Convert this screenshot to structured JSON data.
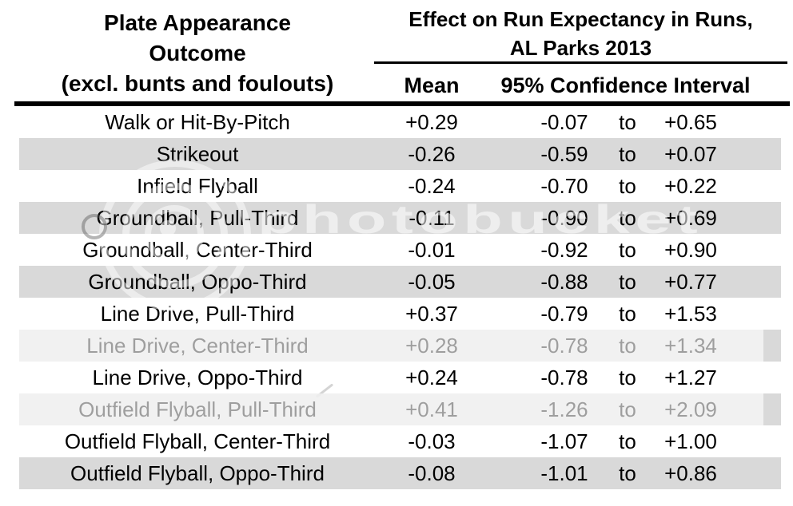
{
  "header": {
    "left_title_lines": [
      "Plate Appearance",
      "Outcome",
      "(excl. bunts and foulouts)"
    ],
    "right_title_lines": [
      "Effect on Run Expectancy in Runs,",
      "AL Parks 2013"
    ],
    "col_mean": "Mean",
    "col_ci": "95% Confidence Interval",
    "ci_separator": "to"
  },
  "rows": [
    {
      "outcome": "Walk or Hit-By-Pitch",
      "mean": "+0.29",
      "ci_low": "-0.07",
      "ci_high": "+0.65",
      "shade": "white",
      "faded": false
    },
    {
      "outcome": "Strikeout",
      "mean": "-0.26",
      "ci_low": "-0.59",
      "ci_high": "+0.07",
      "shade": "gray",
      "faded": false
    },
    {
      "outcome": "Infield Flyball",
      "mean": "-0.24",
      "ci_low": "-0.70",
      "ci_high": "+0.22",
      "shade": "white",
      "faded": false
    },
    {
      "outcome": "Groundball, Pull-Third",
      "mean": "-0.11",
      "ci_low": "-0.90",
      "ci_high": "+0.69",
      "shade": "gray",
      "faded": false
    },
    {
      "outcome": "Groundball, Center-Third",
      "mean": "-0.01",
      "ci_low": "-0.92",
      "ci_high": "+0.90",
      "shade": "white",
      "faded": false
    },
    {
      "outcome": "Groundball, Oppo-Third",
      "mean": "-0.05",
      "ci_low": "-0.88",
      "ci_high": "+0.77",
      "shade": "gray",
      "faded": false
    },
    {
      "outcome": "Line Drive, Pull-Third",
      "mean": "+0.37",
      "ci_low": "-0.79",
      "ci_high": "+1.53",
      "shade": "white",
      "faded": false
    },
    {
      "outcome": "Line Drive, Center-Third",
      "mean": "+0.28",
      "ci_low": "-0.78",
      "ci_high": "+1.34",
      "shade": "gray",
      "faded": true
    },
    {
      "outcome": "Line Drive, Oppo-Third",
      "mean": "+0.24",
      "ci_low": "-0.78",
      "ci_high": "+1.27",
      "shade": "white",
      "faded": false
    },
    {
      "outcome": "Outfield Flyball, Pull-Third",
      "mean": "+0.41",
      "ci_low": "-1.26",
      "ci_high": "+2.09",
      "shade": "gray",
      "faded": true
    },
    {
      "outcome": "Outfield Flyball, Center-Third",
      "mean": "-0.03",
      "ci_low": "-1.07",
      "ci_high": "+1.00",
      "shade": "white",
      "faded": false
    },
    {
      "outcome": "Outfield Flyball, Oppo-Third",
      "mean": "-0.08",
      "ci_low": "-1.01",
      "ci_high": "+0.86",
      "shade": "gray",
      "faded": false
    }
  ],
  "watermark": {
    "text": "photobucket"
  },
  "colors": {
    "row_gray": "#d9d9d9",
    "row_faded": "#f0f0f0",
    "text": "#000000",
    "faded_text": "#9e9e9e"
  },
  "chart_data": {
    "type": "table",
    "title": "Effect on Run Expectancy in Runs, AL Parks 2013",
    "row_header": "Plate Appearance Outcome (excl. bunts and foulouts)",
    "columns": [
      "Outcome",
      "Mean",
      "95% CI lower",
      "95% CI upper"
    ],
    "rows": [
      [
        "Walk or Hit-By-Pitch",
        0.29,
        -0.07,
        0.65
      ],
      [
        "Strikeout",
        -0.26,
        -0.59,
        0.07
      ],
      [
        "Infield Flyball",
        -0.24,
        -0.7,
        0.22
      ],
      [
        "Groundball, Pull-Third",
        -0.11,
        -0.9,
        0.69
      ],
      [
        "Groundball, Center-Third",
        -0.01,
        -0.92,
        0.9
      ],
      [
        "Groundball, Oppo-Third",
        -0.05,
        -0.88,
        0.77
      ],
      [
        "Line Drive, Pull-Third",
        0.37,
        -0.79,
        1.53
      ],
      [
        "Line Drive, Center-Third",
        0.28,
        -0.78,
        1.34
      ],
      [
        "Line Drive, Oppo-Third",
        0.24,
        -0.78,
        1.27
      ],
      [
        "Outfield Flyball, Pull-Third",
        0.41,
        -1.26,
        2.09
      ],
      [
        "Outfield Flyball, Center-Third",
        -0.03,
        -1.07,
        1.0
      ],
      [
        "Outfield Flyball, Oppo-Third",
        -0.08,
        -1.01,
        0.86
      ]
    ]
  }
}
